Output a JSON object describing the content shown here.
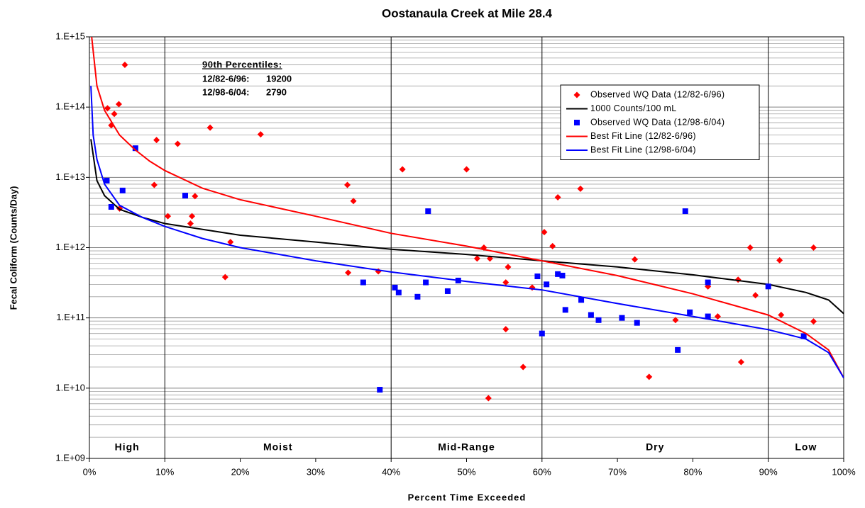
{
  "chart_data": {
    "type": "scatter",
    "title": "Oostanaula Creek at Mile 28.4",
    "x_label": "Percent Time Exceeded",
    "y_label": "Fecal Coliform (Counts/Day)",
    "xlim": [
      0,
      100
    ],
    "ylim": [
      1000000000.0,
      1000000000000000.0
    ],
    "log_y": true,
    "minor_grid": true,
    "xticks": [
      {
        "value": 0,
        "label": "0%"
      },
      {
        "value": 10,
        "label": "10%"
      },
      {
        "value": 20,
        "label": "20%"
      },
      {
        "value": 30,
        "label": "30%"
      },
      {
        "value": 40,
        "label": "40%"
      },
      {
        "value": 50,
        "label": "50%"
      },
      {
        "value": 60,
        "label": "60%"
      },
      {
        "value": 70,
        "label": "70%"
      },
      {
        "value": 80,
        "label": "80%"
      },
      {
        "value": 90,
        "label": "90%"
      },
      {
        "value": 100,
        "label": "100%"
      }
    ],
    "yticks": [
      {
        "value": 1000000000.0,
        "label": "1.E+09"
      },
      {
        "value": 10000000000.0,
        "label": "1.E+10"
      },
      {
        "value": 100000000000.0,
        "label": "1.E+11"
      },
      {
        "value": 1000000000000.0,
        "label": "1.E+12"
      },
      {
        "value": 10000000000000.0,
        "label": "1.E+13"
      },
      {
        "value": 100000000000000.0,
        "label": "1.E+14"
      },
      {
        "value": 1000000000000000.0,
        "label": "1.E+15"
      }
    ],
    "zone_boundaries": [
      10,
      40,
      60,
      90
    ],
    "zone_labels": [
      "High",
      "Moist",
      "Mid-Range",
      "Dry",
      "Low"
    ],
    "annotation": {
      "title": "90th Percentiles:",
      "rows": [
        {
          "period": "12/82-6/96:",
          "value": 19200
        },
        {
          "period": "12/98-6/04:",
          "value": 2790
        }
      ]
    },
    "legend": "upper right",
    "series": [
      {
        "name": "Observed WQ Data (12/82-6/96)",
        "color": "#ff0000",
        "mode": "markers",
        "marker": "diamond",
        "x": [
          2.4,
          2.9,
          4.7,
          3.9,
          3.3,
          8.9,
          8.6,
          4.0,
          10.4,
          11.7,
          16,
          13.4,
          13.6,
          14,
          18,
          18.7,
          22.7,
          34.2,
          35,
          34.3,
          38.3,
          41.5,
          50,
          52.3,
          51.4,
          53.1,
          55.5,
          55.2,
          55.2,
          52.9,
          57.5,
          58.7,
          60.3,
          61.4,
          62.1,
          65.1,
          72.3,
          74.2,
          77.7,
          82,
          83.3,
          86,
          86.4,
          87.6,
          88.3,
          91.5,
          91.7,
          96,
          96
        ],
        "values": [
          96000000000000.0,
          55000000000000.0,
          400000000000000.0,
          110000000000000.0,
          80000000000000.0,
          34000000000000.0,
          7800000000000.0,
          3600000000000.0,
          2800000000000.0,
          30000000000000.0,
          51000000000000.0,
          2200000000000.0,
          2800000000000.0,
          5400000000000.0,
          380000000000.0,
          1200000000000.0,
          41000000000000.0,
          7800000000000.0,
          4600000000000.0,
          440000000000.0,
          460000000000.0,
          13000000000000.0,
          13000000000000.0,
          1000000000000.0,
          700000000000.0,
          700000000000.0,
          530000000000.0,
          320000000000.0,
          69000000000.0,
          7200000000.0,
          20000000000.0,
          270000000000.0,
          1660000000000.0,
          1050000000000.0,
          5200000000000.0,
          6900000000000.0,
          680000000000.0,
          14500000000.0,
          93000000000.0,
          280000000000.0,
          105000000000.0,
          350000000000.0,
          23500000000.0,
          1000000000000.0,
          210000000000.0,
          660000000000.0,
          110000000000.0,
          1000000000000.0,
          89000000000.0
        ]
      },
      {
        "name": "1000 Counts/100 mL",
        "color": "#000000",
        "mode": "line",
        "x": [
          0.2,
          1,
          2,
          4,
          7,
          10,
          20,
          30,
          40,
          50,
          60,
          70,
          80,
          90,
          95,
          98,
          100
        ],
        "values": [
          35000000000000.0,
          9000000000000.0,
          5500000000000.0,
          3500000000000.0,
          2700000000000.0,
          2200000000000.0,
          1500000000000.0,
          1200000000000.0,
          950000000000.0,
          800000000000.0,
          650000000000.0,
          530000000000.0,
          410000000000.0,
          300000000000.0,
          230000000000.0,
          180000000000.0,
          115000000000.0
        ]
      },
      {
        "name": "Observed WQ Data (12/98-6/04)",
        "color": "#0000ff",
        "mode": "markers",
        "marker": "square",
        "x": [
          2.3,
          2.9,
          4.4,
          6.1,
          12.7,
          36.3,
          38.5,
          40.5,
          41,
          43.5,
          44.6,
          44.9,
          47.5,
          48.9,
          59.4,
          60,
          60.6,
          62.1,
          62.7,
          63.1,
          65.2,
          66.5,
          67.5,
          70.6,
          72.6,
          78,
          79,
          79.6,
          82,
          82,
          90,
          94.7
        ],
        "values": [
          9000000000000.0,
          3800000000000.0,
          6500000000000.0,
          26000000000000.0,
          5500000000000.0,
          320000000000.0,
          9500000000.0,
          270000000000.0,
          230000000000.0,
          200000000000.0,
          320000000000.0,
          3300000000000.0,
          240000000000.0,
          340000000000.0,
          390000000000.0,
          60000000000.0,
          300000000000.0,
          420000000000.0,
          400000000000.0,
          130000000000.0,
          180000000000.0,
          110000000000.0,
          93000000000.0,
          100000000000.0,
          85000000000.0,
          35000000000.0,
          3300000000000.0,
          120000000000.0,
          320000000000.0,
          105000000000.0,
          280000000000.0,
          55000000000.0
        ]
      },
      {
        "name": "Best Fit Line (12/82-6/96)",
        "color": "#ff0000",
        "mode": "line",
        "x": [
          0.3,
          1,
          2,
          4,
          6,
          8,
          10,
          15,
          20,
          30,
          40,
          50,
          60,
          70,
          80,
          90,
          95,
          98,
          100
        ],
        "values": [
          1000000000000000.0,
          200000000000000.0,
          90000000000000.0,
          40000000000000.0,
          25000000000000.0,
          17000000000000.0,
          12500000000000.0,
          7000000000000.0,
          4800000000000.0,
          2800000000000.0,
          1600000000000.0,
          1050000000000.0,
          650000000000.0,
          400000000000.0,
          220000000000.0,
          110000000000.0,
          60000000000.0,
          35000000000.0,
          14000000000.0
        ]
      },
      {
        "name": "Best Fit Line (12/98-6/04)",
        "color": "#0000ff",
        "mode": "line",
        "x": [
          0.2,
          0.5,
          1,
          2,
          4,
          7,
          10,
          15,
          20,
          30,
          40,
          50,
          60,
          70,
          80,
          90,
          95,
          98,
          100
        ],
        "values": [
          200000000000000.0,
          40000000000000.0,
          18000000000000.0,
          8000000000000.0,
          4000000000000.0,
          2700000000000.0,
          2000000000000.0,
          1350000000000.0,
          1000000000000.0,
          650000000000.0,
          450000000000.0,
          330000000000.0,
          250000000000.0,
          160000000000.0,
          105000000000.0,
          68000000000.0,
          50000000000.0,
          32000000000.0,
          14000000000.0
        ]
      }
    ]
  }
}
